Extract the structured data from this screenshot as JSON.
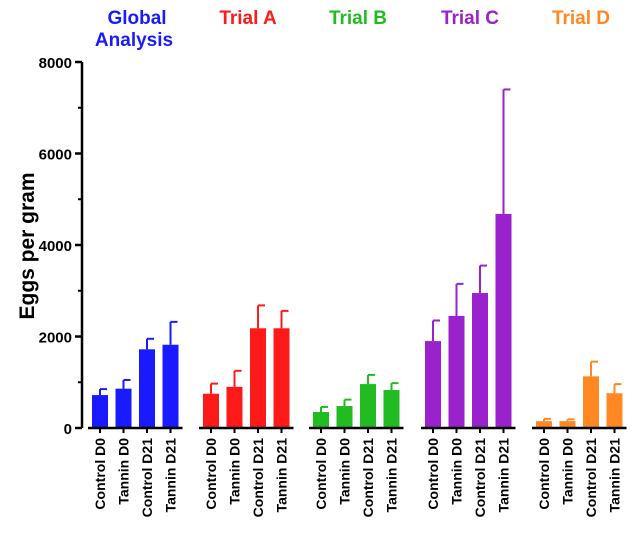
{
  "chart_data": {
    "type": "bar",
    "ylabel": "Eggs per gram",
    "ylim": [
      0,
      8000
    ],
    "yticks": [
      "0",
      "2000",
      "4000",
      "6000",
      "8000"
    ],
    "grid": false,
    "legend_placement": "top",
    "error_bars": "upper",
    "categories": [
      "Control D0",
      "Tannin D0",
      "Control D21",
      "Tannin D21"
    ],
    "groups": [
      {
        "title_lines": [
          "Global",
          "Analysis"
        ],
        "color": "#1a1aff",
        "values": [
          720,
          860,
          1720,
          1820
        ],
        "errors": [
          130,
          190,
          230,
          500
        ]
      },
      {
        "title_lines": [
          "Trial A"
        ],
        "color": "#ff1a1a",
        "values": [
          750,
          900,
          2180,
          2180
        ],
        "errors": [
          220,
          350,
          500,
          380
        ]
      },
      {
        "title_lines": [
          "Trial B"
        ],
        "color": "#22bb22",
        "values": [
          350,
          480,
          960,
          830
        ],
        "errors": [
          110,
          140,
          200,
          150
        ]
      },
      {
        "title_lines": [
          "Trial C"
        ],
        "color": "#9a22cc",
        "values": [
          1900,
          2450,
          2950,
          4680
        ],
        "errors": [
          450,
          700,
          600,
          2720
        ]
      },
      {
        "title_lines": [
          "Trial D"
        ],
        "color": "#ff8822",
        "values": [
          150,
          150,
          1130,
          760
        ],
        "errors": [
          50,
          40,
          320,
          200
        ]
      }
    ]
  }
}
